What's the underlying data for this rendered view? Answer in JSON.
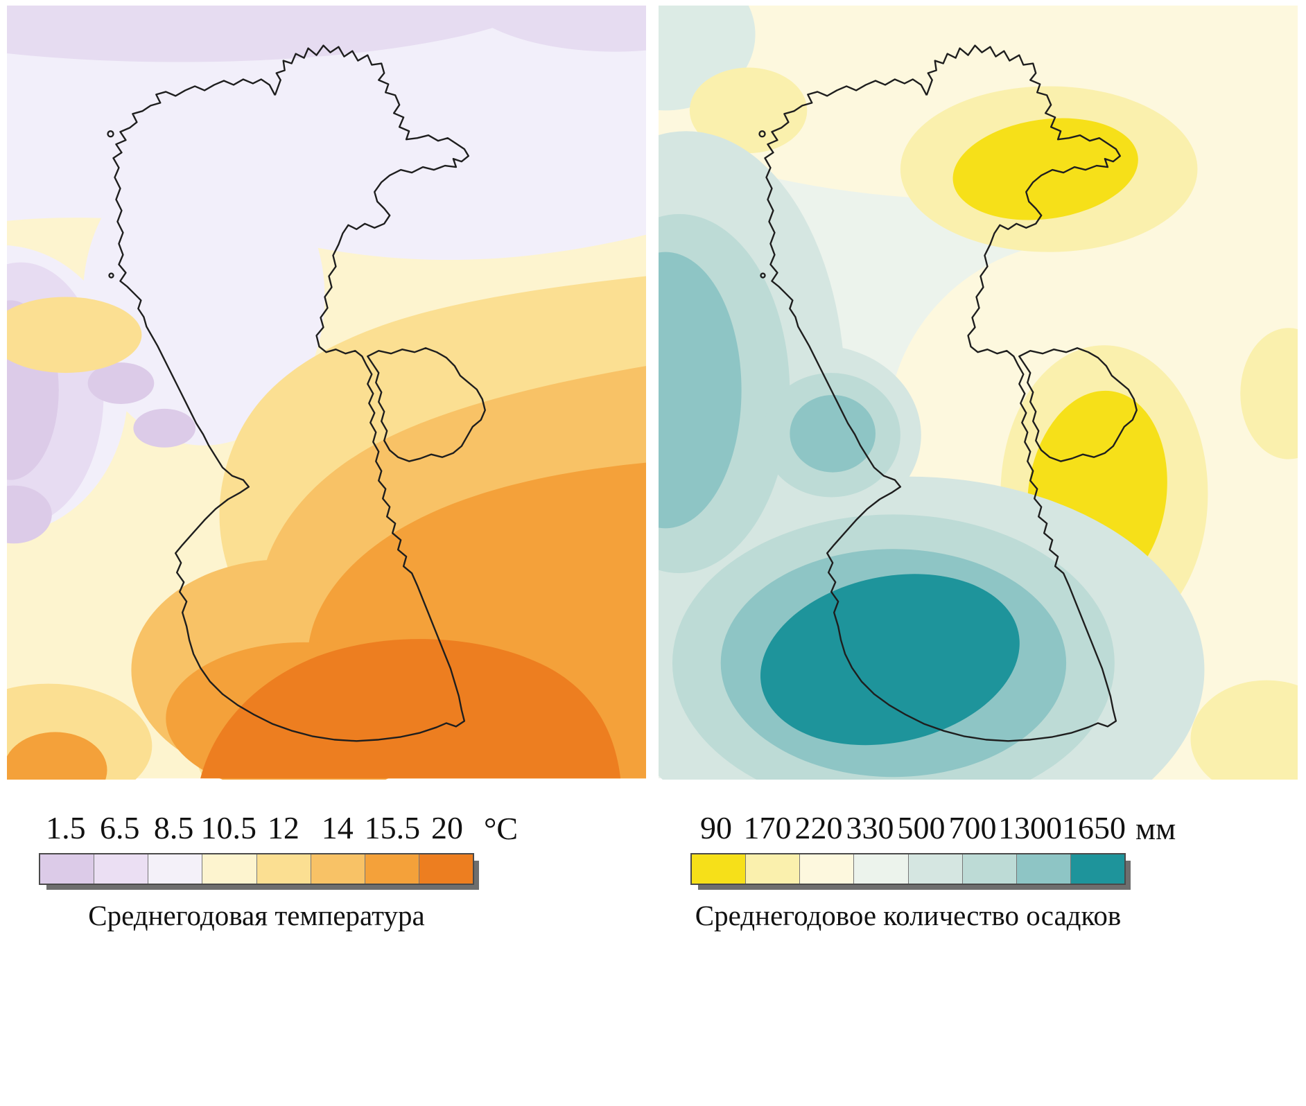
{
  "figure": {
    "panels": [
      {
        "id": "temperature",
        "caption": "Среднегодовая температура",
        "unit": "°C",
        "legend_labels": [
          "1.5",
          "6.5",
          "8.5",
          "10.5",
          "12",
          "14",
          "15.5",
          "20"
        ],
        "legend_colors": [
          "#dccbe8",
          "#ebdff3",
          "#f4f1f9",
          "#fdf4cf",
          "#fbdf92",
          "#f8c266",
          "#f4a13a",
          "#ed7e20"
        ]
      },
      {
        "id": "precipitation",
        "caption": "Среднегодовое количество осадков",
        "unit": "мм",
        "legend_labels": [
          "90",
          "170",
          "220",
          "330",
          "500",
          "700",
          "1300",
          "1650"
        ],
        "legend_colors": [
          "#f6e019",
          "#faf0ad",
          "#fdf8de",
          "#ecf3ec",
          "#d5e6e1",
          "#bddbd6",
          "#8ec5c5",
          "#1e949b"
        ]
      }
    ]
  }
}
